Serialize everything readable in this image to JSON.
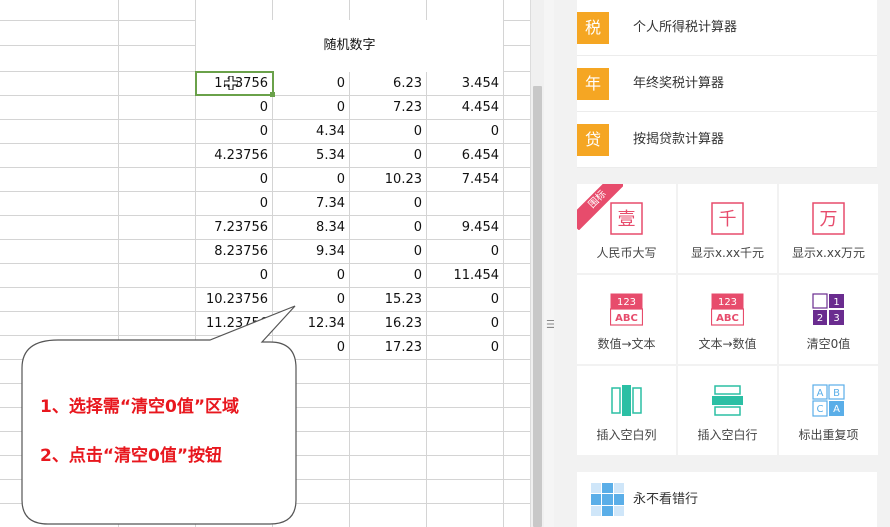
{
  "sheet": {
    "header": "随机数字",
    "rows": [
      [
        "1.23756",
        "0",
        "6.23",
        "3.454"
      ],
      [
        "0",
        "0",
        "7.23",
        "4.454"
      ],
      [
        "0",
        "4.34",
        "0",
        "0"
      ],
      [
        "4.23756",
        "5.34",
        "0",
        "6.454"
      ],
      [
        "0",
        "0",
        "10.23",
        "7.454"
      ],
      [
        "0",
        "7.34",
        "0",
        ""
      ],
      [
        "7.23756",
        "8.34",
        "0",
        "9.454"
      ],
      [
        "8.23756",
        "9.34",
        "0",
        "0"
      ],
      [
        "0",
        "0",
        "0",
        "11.454"
      ],
      [
        "10.23756",
        "0",
        "15.23",
        "0"
      ],
      [
        "11.23756",
        "12.34",
        "16.23",
        "0"
      ],
      [
        "",
        "0",
        "17.23",
        "0"
      ]
    ]
  },
  "callout": {
    "line1": "1、选择需“清空0值”区域",
    "line2": "2、点击“清空0值”按钮"
  },
  "panel": {
    "calculators": [
      {
        "badge": "税",
        "label": "个人所得税计算器"
      },
      {
        "badge": "年",
        "label": "年终奖税计算器"
      },
      {
        "badge": "贷",
        "label": "按揭贷款计算器"
      }
    ],
    "ribbon": "围标",
    "tiles": [
      {
        "label": "人民币大写",
        "icon": "yuan-uppercase-icon",
        "glyph": "壹"
      },
      {
        "label": "显示x.xx千元",
        "icon": "thousand-icon",
        "glyph": "千"
      },
      {
        "label": "显示x.xx万元",
        "icon": "ten-thousand-icon",
        "glyph": "万"
      },
      {
        "label": "数值→文本",
        "icon": "number-to-text-icon",
        "top": "123",
        "bottom": "ABC"
      },
      {
        "label": "文本→数值",
        "icon": "text-to-number-icon",
        "top": "123",
        "bottom": "ABC"
      },
      {
        "label": "清空0值",
        "icon": "clear-zero-icon",
        "cells": [
          "",
          "1",
          "2",
          "3"
        ]
      },
      {
        "label": "插入空白列",
        "icon": "insert-column-icon"
      },
      {
        "label": "插入空白行",
        "icon": "insert-row-icon"
      },
      {
        "label": "标出重复项",
        "icon": "mark-duplicates-icon",
        "cells": [
          "A",
          "B",
          "C",
          "A"
        ]
      }
    ],
    "bottom": {
      "label": "永不看错行",
      "icon": "crosshair-grid-icon"
    }
  },
  "colors": {
    "accent_orange": "#f5a623",
    "pink": "#e74c6c",
    "purple": "#6a2c8f",
    "teal": "#2bbfa4",
    "blue": "#5aaee8",
    "callout_red": "#e8171e",
    "selection_green": "#6aa14a"
  }
}
